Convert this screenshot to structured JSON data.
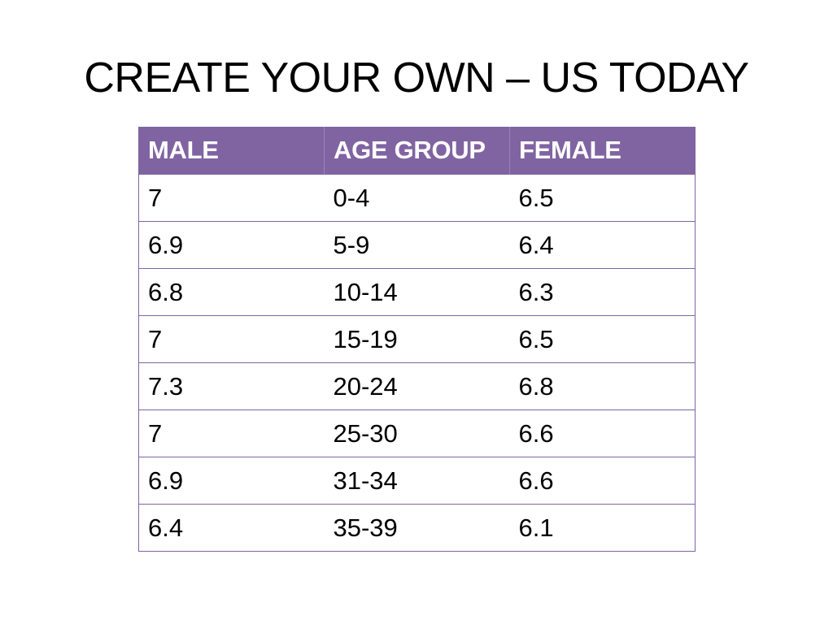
{
  "slide": {
    "title": "CREATE YOUR OWN – US TODAY"
  },
  "table": {
    "headers": [
      "MALE",
      "AGE GROUP",
      "FEMALE"
    ],
    "rows": [
      [
        "7",
        "0-4",
        "6.5"
      ],
      [
        "6.9",
        "5-9",
        "6.4"
      ],
      [
        "6.8",
        "10-14",
        "6.3"
      ],
      [
        "7",
        "15-19",
        "6.5"
      ],
      [
        "7.3",
        "20-24",
        "6.8"
      ],
      [
        "7",
        "25-30",
        "6.6"
      ],
      [
        "6.9",
        "31-34",
        "6.6"
      ],
      [
        "6.4",
        "35-39",
        "6.1"
      ]
    ]
  },
  "colors": {
    "header_bg": "#8064a2",
    "header_text": "#ffffff",
    "border": "#8064a2"
  }
}
